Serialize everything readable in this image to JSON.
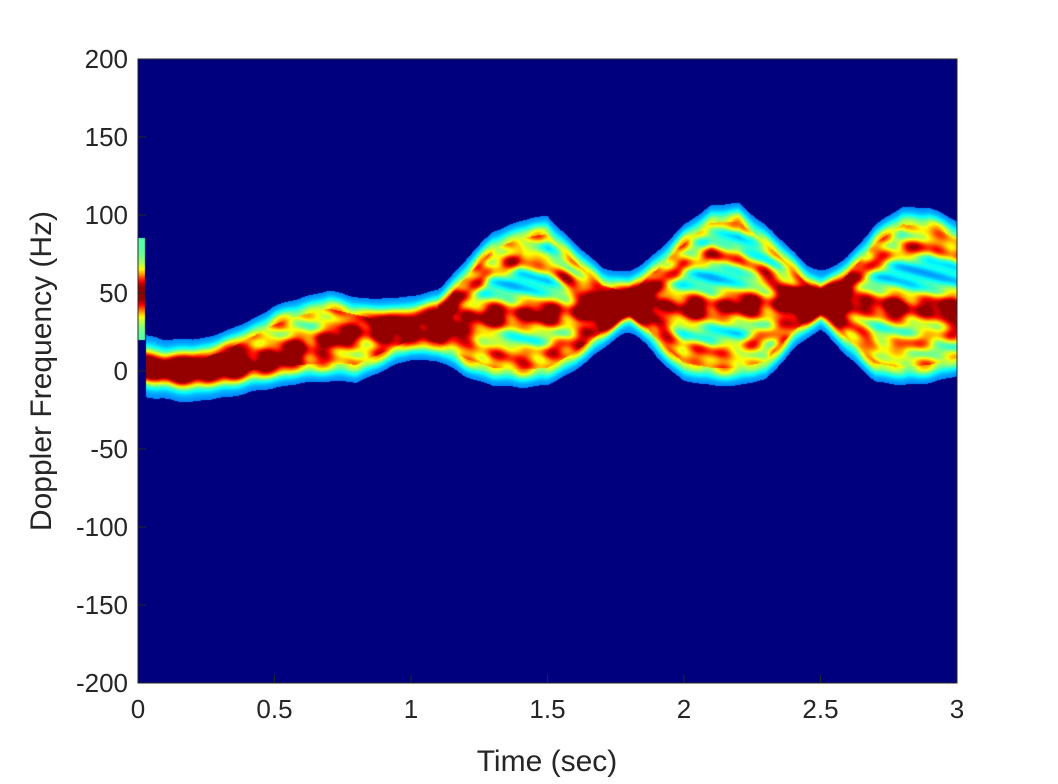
{
  "chart_data": {
    "type": "heatmap",
    "title": "",
    "xlabel": "Time (sec)",
    "ylabel": "Doppler Frequency (Hz)",
    "xlim": [
      0,
      3
    ],
    "ylim": [
      -200,
      200
    ],
    "xticks": [
      0,
      0.5,
      1,
      1.5,
      2,
      2.5,
      3
    ],
    "xtick_labels": [
      "0",
      "0.5",
      "1",
      "1.5",
      "2",
      "2.5",
      "3"
    ],
    "yticks": [
      200,
      150,
      100,
      50,
      0,
      -50,
      -100,
      -150,
      -200
    ],
    "ytick_labels": [
      "200",
      "150",
      "100",
      "50",
      "0",
      "-50",
      "-100",
      "-150",
      "-200"
    ],
    "colormap": "jet",
    "background_color": "#00007f",
    "grid": false,
    "legend": "none",
    "bands": [
      {
        "role": "core",
        "x": [
          0.03,
          0.1,
          0.2,
          0.3,
          0.4,
          0.5,
          0.6,
          0.7,
          0.8,
          0.9,
          1.0,
          1.1,
          1.2,
          1.3,
          1.4,
          1.5,
          1.6,
          1.7,
          1.8,
          1.9,
          2.0,
          2.1,
          2.2,
          2.3,
          2.4,
          2.5,
          2.6,
          2.7,
          2.8,
          2.9,
          3.0
        ],
        "y": [
          3,
          1,
          0,
          2,
          6,
          10,
          15,
          20,
          24,
          26,
          28,
          30,
          33,
          35,
          36,
          36,
          38,
          40,
          44,
          42,
          40,
          40,
          42,
          42,
          44,
          46,
          44,
          42,
          40,
          40,
          40
        ],
        "intensity": 1.0
      },
      {
        "role": "upper-envelope",
        "x": [
          0.03,
          0.1,
          0.2,
          0.3,
          0.4,
          0.5,
          0.6,
          0.7,
          0.8,
          0.9,
          1.0,
          1.1,
          1.2,
          1.3,
          1.4,
          1.5,
          1.6,
          1.7,
          1.8,
          1.9,
          2.0,
          2.1,
          2.2,
          2.3,
          2.4,
          2.5,
          2.6,
          2.7,
          2.8,
          2.9,
          3.0
        ],
        "y": [
          5,
          4,
          6,
          12,
          20,
          30,
          36,
          40,
          36,
          32,
          34,
          40,
          60,
          78,
          85,
          88,
          70,
          55,
          50,
          65,
          82,
          95,
          96,
          82,
          65,
          48,
          62,
          82,
          94,
          93,
          85
        ],
        "intensity": 0.5
      },
      {
        "role": "lower-envelope",
        "x": [
          0.03,
          0.1,
          0.2,
          0.3,
          0.4,
          0.5,
          0.6,
          0.7,
          0.8,
          0.9,
          1.0,
          1.1,
          1.2,
          1.3,
          1.4,
          1.5,
          1.6,
          1.7,
          1.8,
          1.9,
          2.0,
          2.1,
          2.2,
          2.3,
          2.4,
          2.5,
          2.6,
          2.7,
          2.8,
          2.9,
          3.0
        ],
        "y": [
          0,
          -2,
          -3,
          -2,
          0,
          2,
          4,
          5,
          4,
          12,
          20,
          18,
          8,
          2,
          1,
          2,
          12,
          25,
          42,
          20,
          5,
          2,
          2,
          6,
          25,
          40,
          20,
          5,
          2,
          4,
          8
        ],
        "intensity": 0.5
      },
      {
        "role": "second-upper",
        "x": [
          1.1,
          1.2,
          1.3,
          1.4,
          1.5,
          1.6,
          1.7,
          1.8,
          1.9,
          2.0,
          2.1,
          2.2,
          2.3,
          2.4,
          2.5,
          2.6,
          2.7,
          2.8,
          2.9,
          3.0
        ],
        "y": [
          35,
          50,
          65,
          72,
          68,
          55,
          45,
          42,
          55,
          68,
          75,
          72,
          62,
          50,
          45,
          55,
          70,
          78,
          80,
          75
        ],
        "intensity": 0.7
      },
      {
        "role": "second-lower",
        "x": [
          1.1,
          1.2,
          1.3,
          1.4,
          1.5,
          1.6,
          1.7,
          1.8,
          1.9,
          2.0,
          2.1,
          2.2,
          2.3,
          2.4,
          2.5,
          2.6,
          2.7,
          2.8,
          2.9,
          3.0
        ],
        "y": [
          28,
          20,
          12,
          10,
          12,
          20,
          30,
          42,
          30,
          15,
          12,
          14,
          22,
          32,
          42,
          30,
          18,
          16,
          20,
          25
        ],
        "intensity": 0.6
      }
    ],
    "edge_artifact": {
      "x": 0.01,
      "y_range": [
        20,
        85
      ],
      "peak_y": 50
    }
  }
}
